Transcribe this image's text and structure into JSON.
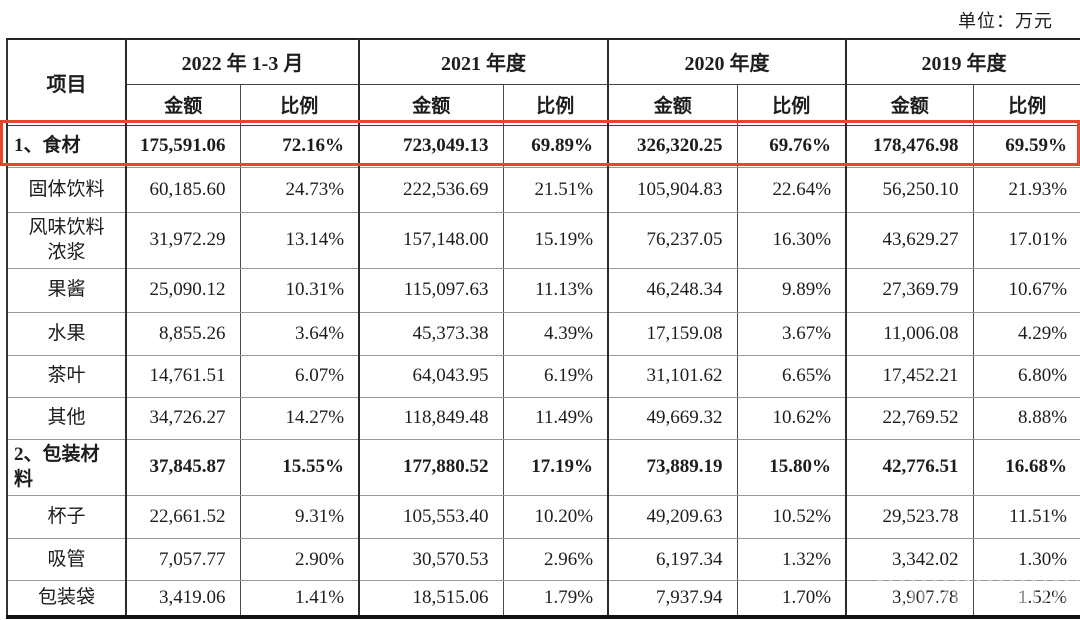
{
  "unit_label": "单位：万元",
  "colors": {
    "highlight_border": "#e8442e"
  },
  "table": {
    "item_header": "项目",
    "col_groups": [
      {
        "label": "2022 年 1-3 月"
      },
      {
        "label": "2021 年度"
      },
      {
        "label": "2020 年度"
      },
      {
        "label": "2019 年度"
      }
    ],
    "sub_headers": [
      "金额",
      "比例"
    ],
    "rows": [
      {
        "label": "1、食材",
        "bold": true,
        "highlight": true,
        "values": [
          "175,591.06",
          "72.16%",
          "723,049.13",
          "69.89%",
          "326,320.25",
          "69.76%",
          "178,476.98",
          "69.59%"
        ]
      },
      {
        "label": "固体饮料",
        "bold": false,
        "values": [
          "60,185.60",
          "24.73%",
          "222,536.69",
          "21.51%",
          "105,904.83",
          "22.64%",
          "56,250.10",
          "21.93%"
        ]
      },
      {
        "label": "风味饮料\n浓浆",
        "bold": false,
        "values": [
          "31,972.29",
          "13.14%",
          "157,148.00",
          "15.19%",
          "76,237.05",
          "16.30%",
          "43,629.27",
          "17.01%"
        ]
      },
      {
        "label": "果酱",
        "bold": false,
        "values": [
          "25,090.12",
          "10.31%",
          "115,097.63",
          "11.13%",
          "46,248.34",
          "9.89%",
          "27,369.79",
          "10.67%"
        ]
      },
      {
        "label": "水果",
        "bold": false,
        "values": [
          "8,855.26",
          "3.64%",
          "45,373.38",
          "4.39%",
          "17,159.08",
          "3.67%",
          "11,006.08",
          "4.29%"
        ]
      },
      {
        "label": "茶叶",
        "bold": false,
        "values": [
          "14,761.51",
          "6.07%",
          "64,043.95",
          "6.19%",
          "31,101.62",
          "6.65%",
          "17,452.21",
          "6.80%"
        ]
      },
      {
        "label": "其他",
        "bold": false,
        "values": [
          "34,726.27",
          "14.27%",
          "118,849.48",
          "11.49%",
          "49,669.32",
          "10.62%",
          "22,769.52",
          "8.88%"
        ]
      },
      {
        "label": "2、包装材\n料",
        "bold": true,
        "values": [
          "37,845.87",
          "15.55%",
          "177,880.52",
          "17.19%",
          "73,889.19",
          "15.80%",
          "42,776.51",
          "16.68%"
        ]
      },
      {
        "label": "杯子",
        "bold": false,
        "values": [
          "22,661.52",
          "9.31%",
          "105,553.40",
          "10.20%",
          "49,209.63",
          "10.52%",
          "29,523.78",
          "11.51%"
        ]
      },
      {
        "label": "吸管",
        "bold": false,
        "values": [
          "7,057.77",
          "2.90%",
          "30,570.53",
          "2.96%",
          "6,197.34",
          "1.32%",
          "3,342.02",
          "1.30%"
        ]
      },
      {
        "label": "包装袋",
        "bold": false,
        "values": [
          "3,419.06",
          "1.41%",
          "18,515.06",
          "1.79%",
          "7,937.94",
          "1.70%",
          "3,907.78",
          "1.52%"
        ]
      }
    ]
  }
}
